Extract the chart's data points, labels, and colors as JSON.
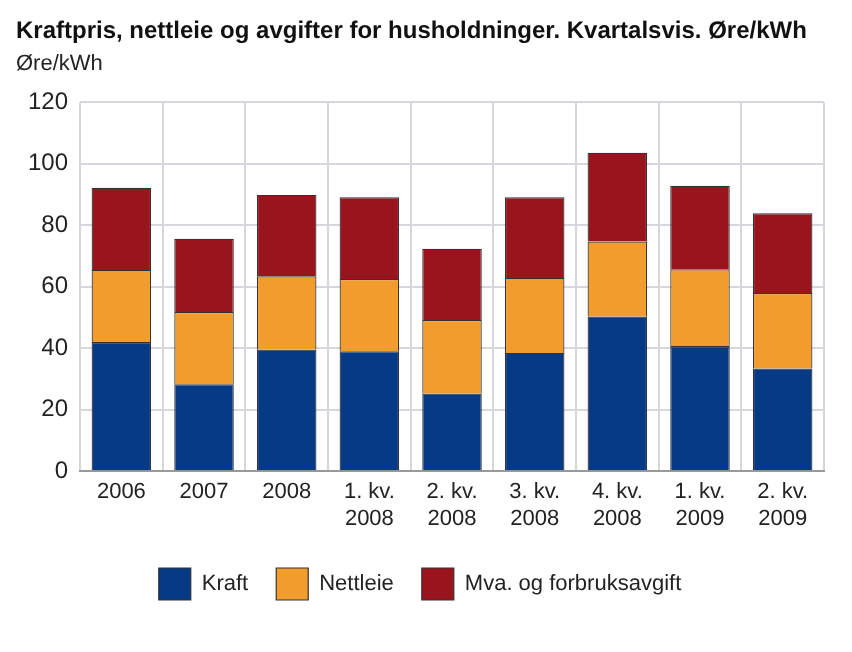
{
  "chart_data": {
    "type": "bar",
    "title": "Kraftpris, nettleie og avgifter for husholdninger. Kvartalsvis. Øre/kWh",
    "ylabel": "Øre/kWh",
    "categories": [
      "2006",
      "2007",
      "2008",
      "1. kv. 2008",
      "2. kv. 2008",
      "3. kv. 2008",
      "4. kv. 2008",
      "1. kv. 2009",
      "2. kv. 2009"
    ],
    "series": [
      {
        "name": "Kraft",
        "color": "#063a87",
        "values": [
          42,
          28.3,
          39.6,
          39,
          25.3,
          38.5,
          50.3,
          40.7,
          33.4
        ]
      },
      {
        "name": "Nettleie",
        "color": "#f29c2e",
        "values": [
          23.5,
          23.5,
          23.8,
          23.5,
          23.9,
          24.4,
          24.4,
          25,
          24.6
        ]
      },
      {
        "name": "Mva. og forbruksavgift",
        "color": "#9a141e",
        "values": [
          26.7,
          23.8,
          26.5,
          26.6,
          23.2,
          26.2,
          28.9,
          27.2,
          25.9
        ]
      }
    ],
    "stacked": true,
    "ylim": [
      0,
      120
    ],
    "yticks": [
      0,
      20,
      40,
      60,
      80,
      100,
      120
    ],
    "grid": true,
    "legend": "bottom"
  }
}
